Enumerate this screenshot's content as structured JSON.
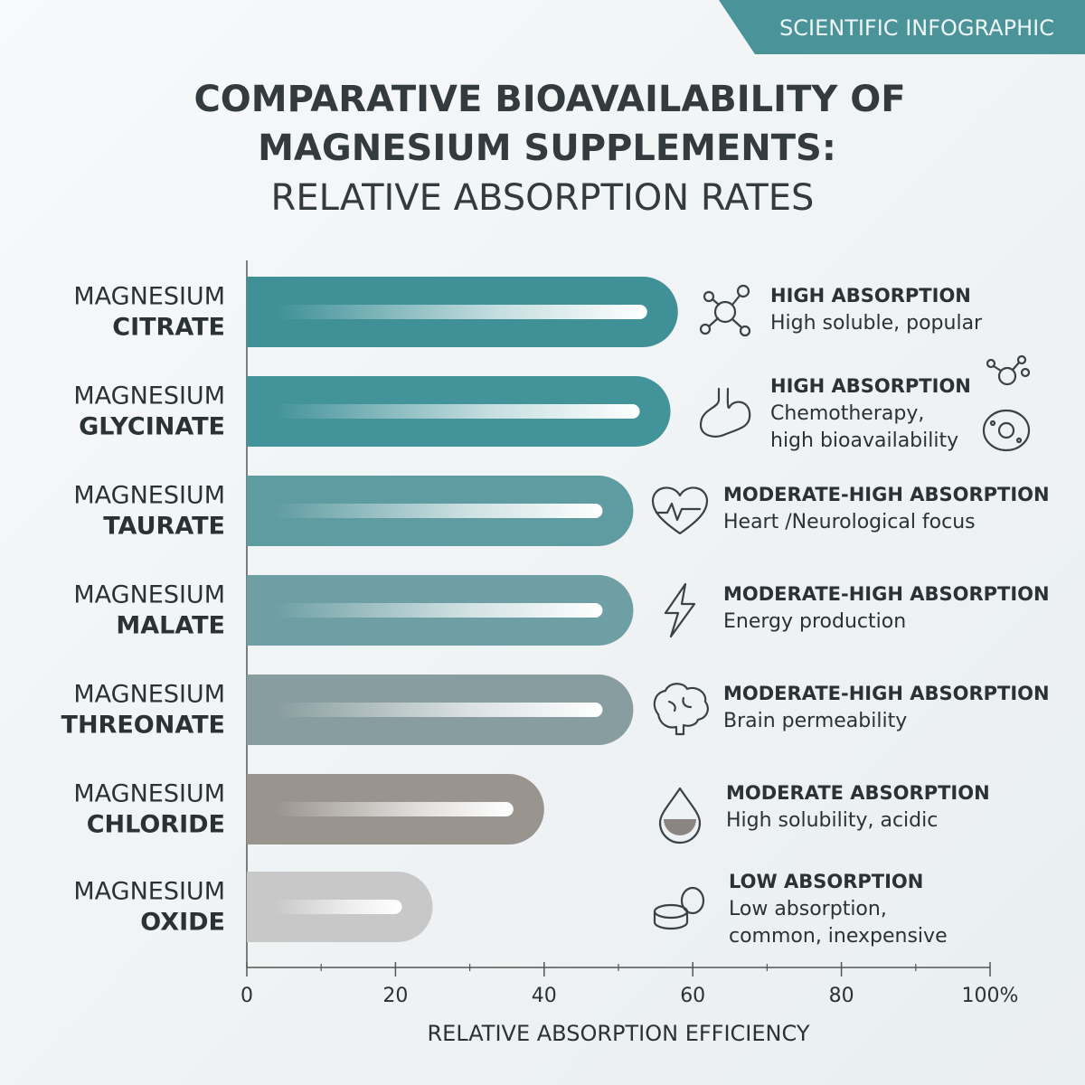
{
  "chart_data": {
    "type": "bar",
    "orientation": "horizontal",
    "badge": "SCIENTIFIC INFOGRAPHIC",
    "title": [
      "COMPARATIVE BIOAVAILABILITY OF",
      "MAGNESIUM SUPPLEMENTS:"
    ],
    "subtitle": "RELATIVE ABSORPTION RATES",
    "category_prefixes": [
      "MAGNESIUM",
      "MAGNESIUM",
      "MAGNESIUM",
      "MAGNESIUM",
      "MAGNESIUM",
      "MAGNESIUM",
      "MAGNESIUM"
    ],
    "categories": [
      "CITRATE",
      "GLYCINATE",
      "TAURATE",
      "MALATE",
      "THREONATE",
      "CHLORIDE",
      "OXIDE"
    ],
    "values": [
      58,
      57,
      52,
      52,
      52,
      40,
      25
    ],
    "colors": [
      "#3f9097",
      "#43939a",
      "#5f9ca2",
      "#6d9fa4",
      "#889d9f",
      "#9a948e",
      "#c8c8c8"
    ],
    "annotations": [
      {
        "heading": "HIGH ABSORPTION",
        "text": [
          "High soluble, popular"
        ]
      },
      {
        "heading": "HIGH ABSORPTION",
        "text": [
          "Chemotherapy,",
          "high bioavailability"
        ]
      },
      {
        "heading": "MODERATE-HIGH ABSORPTION",
        "text": [
          "Heart /Neurological focus"
        ]
      },
      {
        "heading": "MODERATE-HIGH ABSORPTION",
        "text": [
          "Energy production"
        ]
      },
      {
        "heading": "MODERATE-HIGH ABSORPTION",
        "text": [
          "Brain permeability"
        ]
      },
      {
        "heading": "MODERATE ABSORPTION",
        "text": [
          "High solubility, acidic"
        ]
      },
      {
        "heading": "LOW ABSORPTION",
        "text": [
          "Low absorption,",
          "common, inexpensive"
        ]
      }
    ],
    "xlabel": "RELATIVE ABSORPTION EFFICIENCY",
    "xlim": [
      0,
      100
    ],
    "xticks": [
      0,
      20,
      40,
      60,
      80,
      {
        "value": 100,
        "label": "100%"
      }
    ],
    "xminor_ticks": [
      10,
      30,
      50,
      70,
      90
    ]
  }
}
